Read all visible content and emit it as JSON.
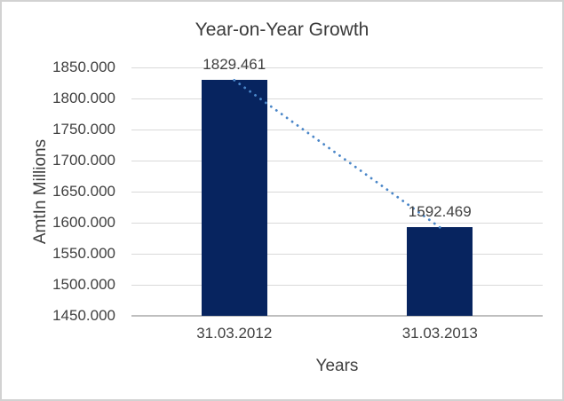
{
  "chart_data": {
    "type": "bar",
    "title": "Year-on-Year Growth",
    "xlabel": "Years",
    "ylabel": "AmtIn Millions",
    "categories": [
      "31.03.2012",
      "31.03.2013"
    ],
    "values": [
      1829.461,
      1592.469
    ],
    "data_labels": [
      "1829.461",
      "1592.469"
    ],
    "y_ticks": [
      "1850.000",
      "1800.000",
      "1750.000",
      "1700.000",
      "1650.000",
      "1600.000",
      "1550.000",
      "1500.000",
      "1450.000"
    ],
    "ylim": [
      1450,
      1850
    ],
    "grid": true,
    "legend": "none",
    "trendline": {
      "style": "dotted",
      "from_value": 1829.461,
      "to_value": 1592.469
    },
    "colors": {
      "bar_fill": "#07245f",
      "trendline": "#4a86c8",
      "gridline": "#d9d9d9",
      "axis_line": "#bfbfbf",
      "text": "#404040",
      "title_text": "#3a3a3a",
      "background": "#ffffff",
      "chart_border": "#d2d2d2"
    }
  }
}
